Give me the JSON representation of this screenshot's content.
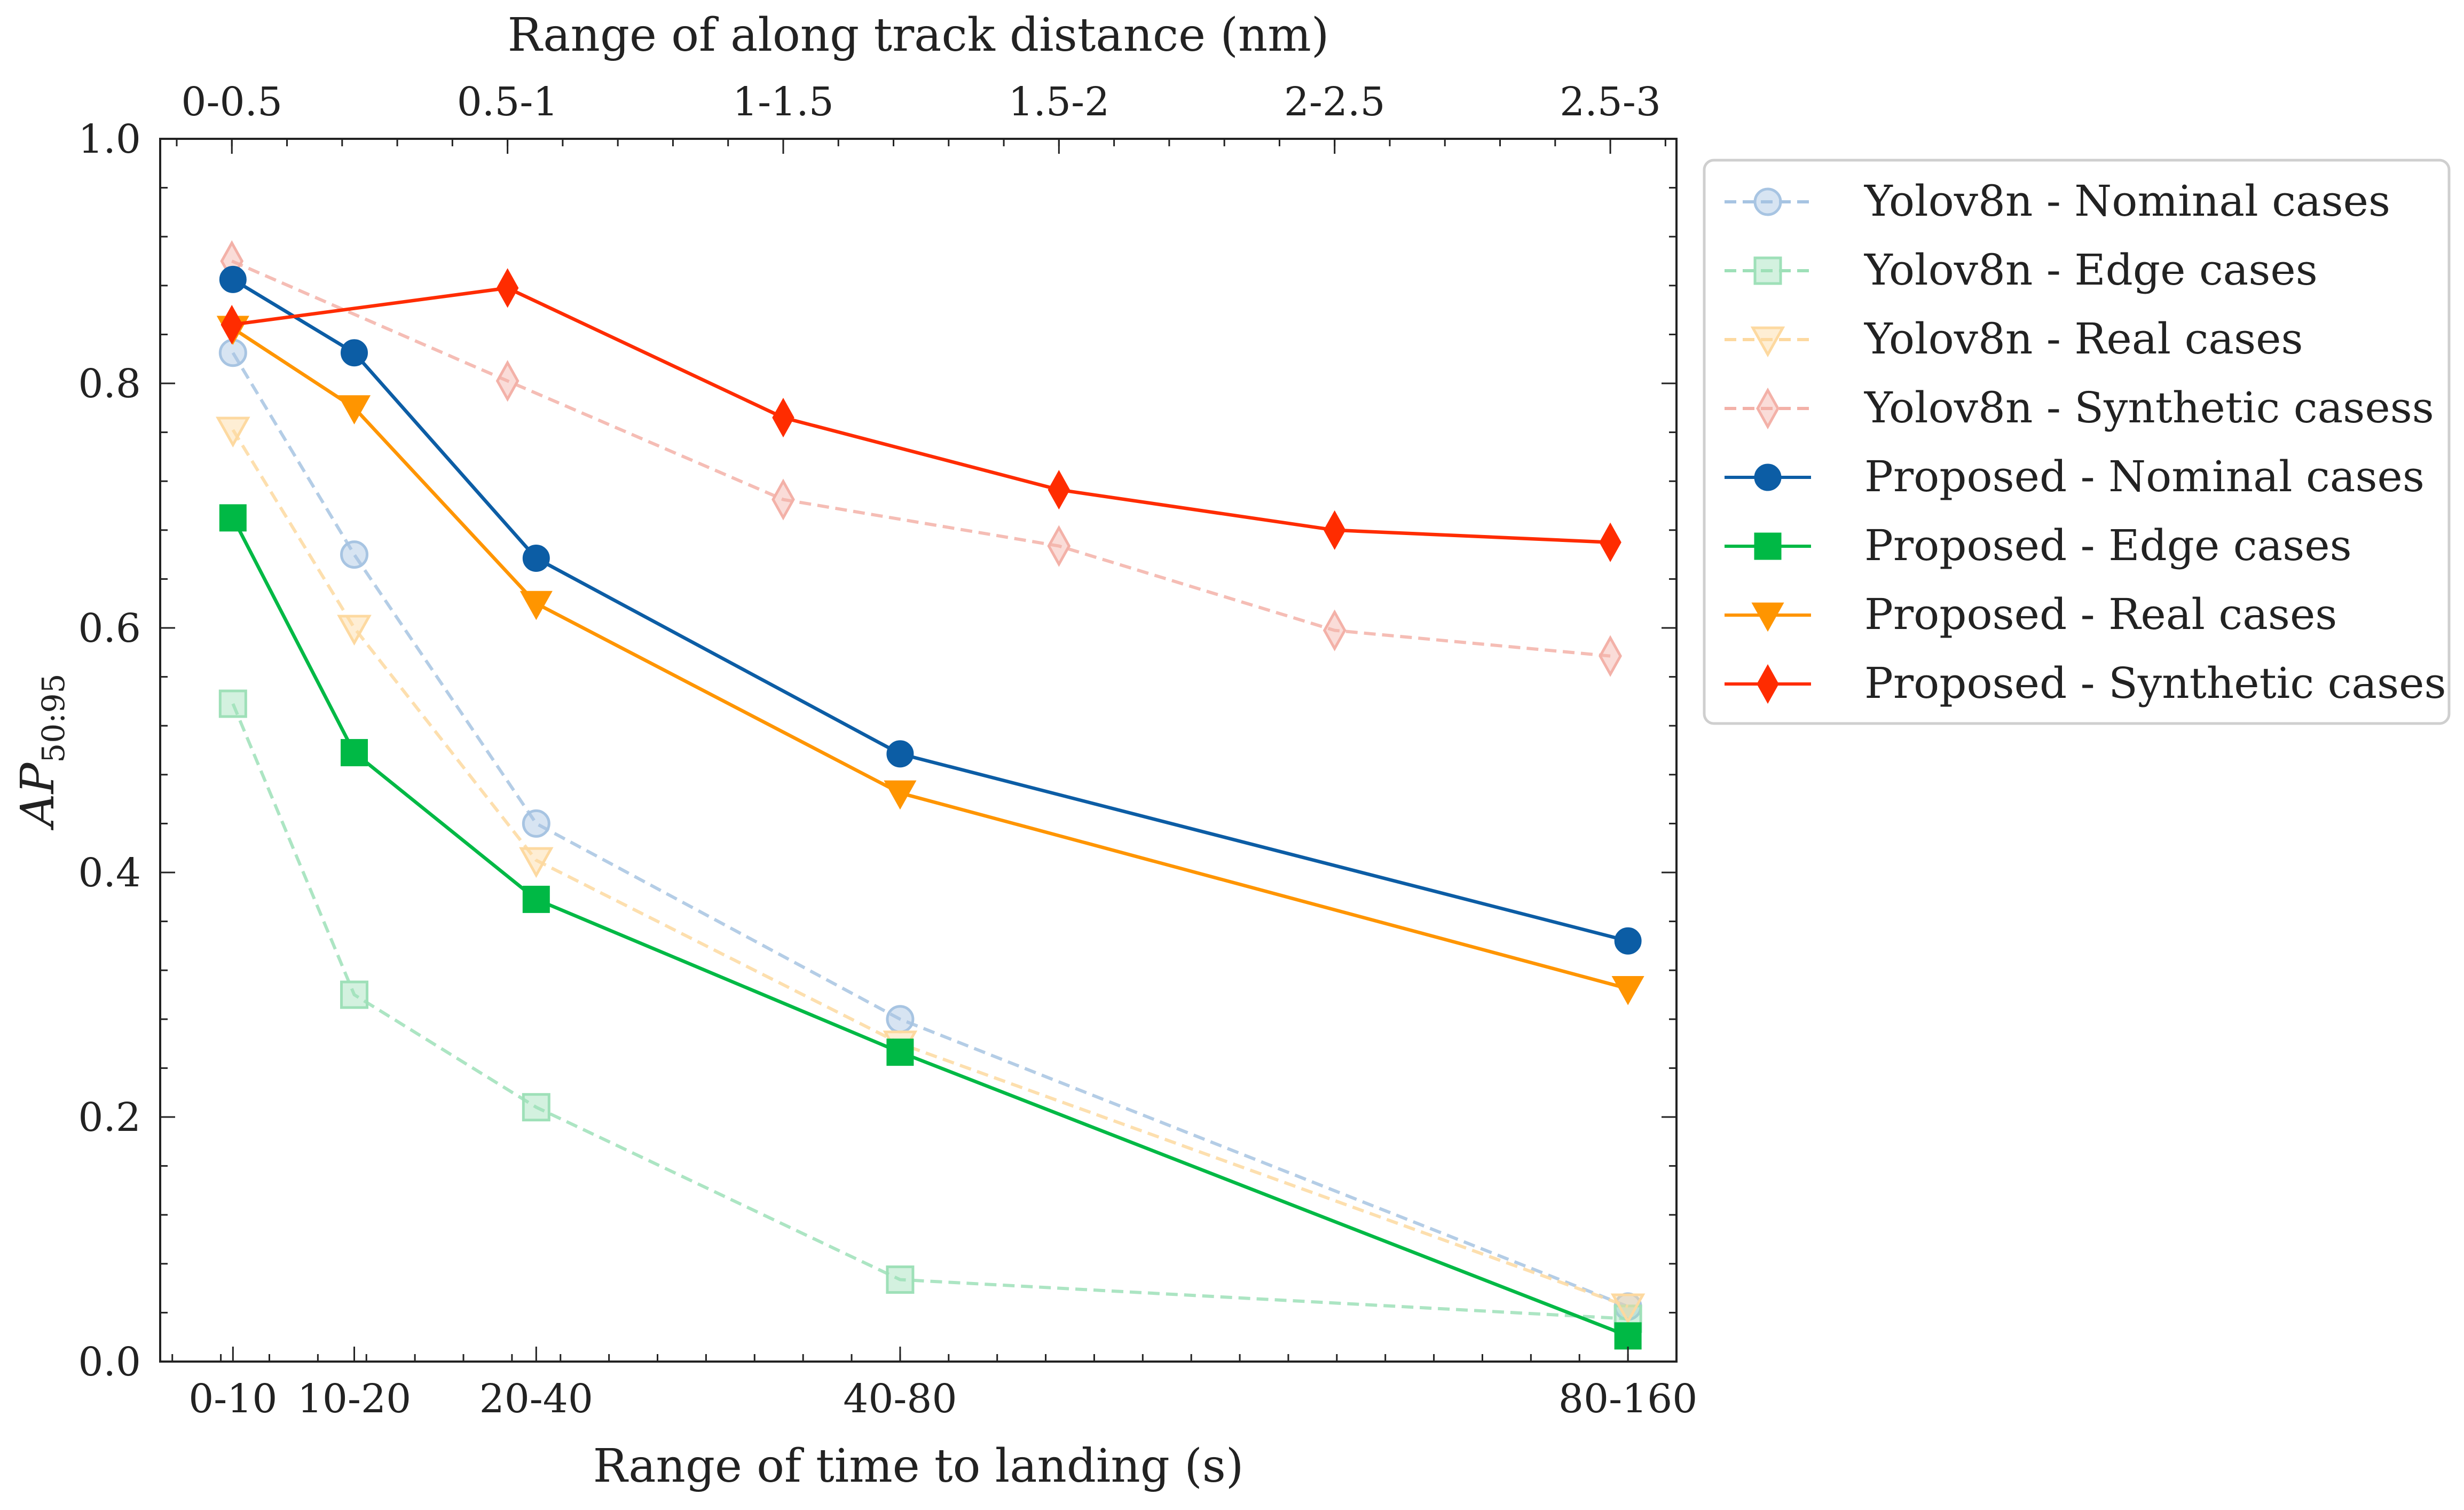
{
  "chart_data": {
    "type": "line",
    "top_axis": {
      "title": "Range of along track distance (nm)",
      "tick_labels": [
        "0-0.5",
        "0.5-1",
        "1-1.5",
        "1.5-2",
        "2-2.5",
        "2.5-3"
      ],
      "tick_positions": [
        0.25,
        0.75,
        1.25,
        1.75,
        2.25,
        2.75
      ],
      "range": [
        0.12,
        2.87
      ]
    },
    "x_axis": {
      "title": "Range of time to landing (s)",
      "tick_labels": [
        "0-10",
        "10-20",
        "20-40",
        "40-80",
        "80-160"
      ],
      "tick_positions": [
        5,
        15,
        30,
        60,
        120
      ],
      "range": [
        -1,
        124
      ]
    },
    "y_axis": {
      "title": "AP50:95",
      "label_main": "AP",
      "label_sub": "50:95",
      "range": [
        0.0,
        1.0
      ],
      "ticks": [
        "0.0",
        "0.2",
        "0.4",
        "0.6",
        "0.8",
        "1.0"
      ]
    },
    "legend_position": "outside-right",
    "grid": false,
    "series": [
      {
        "name": "Yolov8n - Nominal cases",
        "axis": "bottom",
        "style": "dashed",
        "marker": "circle",
        "color": "#a7c4e2",
        "x": [
          5,
          15,
          30,
          60,
          120
        ],
        "values": [
          0.825,
          0.66,
          0.44,
          0.28,
          0.045
        ]
      },
      {
        "name": "Yolov8n - Edge cases",
        "axis": "bottom",
        "style": "dashed",
        "marker": "square",
        "color": "#9ee0b8",
        "x": [
          5,
          15,
          30,
          60,
          120
        ],
        "values": [
          0.538,
          0.3,
          0.208,
          0.067,
          0.035
        ]
      },
      {
        "name": "Yolov8n - Real cases",
        "axis": "bottom",
        "style": "dashed",
        "marker": "triangle-down",
        "color": "#fdd9a0",
        "x": [
          5,
          15,
          30,
          60,
          120
        ],
        "values": [
          0.762,
          0.6,
          0.41,
          0.26,
          0.045
        ]
      },
      {
        "name": "Yolov8n - Synthetic casess",
        "axis": "top",
        "style": "dashed",
        "marker": "thin-diamond",
        "color": "#f3b1a8",
        "x": [
          0.25,
          0.75,
          1.25,
          1.75,
          2.25,
          2.75
        ],
        "values": [
          0.9,
          0.802,
          0.705,
          0.667,
          0.598,
          0.577
        ]
      },
      {
        "name": "Proposed - Nominal cases",
        "axis": "bottom",
        "style": "solid",
        "marker": "circle",
        "color": "#0c5da5",
        "x": [
          5,
          15,
          30,
          60,
          120
        ],
        "values": [
          0.885,
          0.825,
          0.657,
          0.497,
          0.344
        ]
      },
      {
        "name": "Proposed - Edge cases",
        "axis": "bottom",
        "style": "solid",
        "marker": "square",
        "color": "#00b945",
        "x": [
          5,
          15,
          30,
          60,
          120
        ],
        "values": [
          0.69,
          0.498,
          0.378,
          0.253,
          0.021
        ]
      },
      {
        "name": "Proposed - Real cases",
        "axis": "bottom",
        "style": "solid",
        "marker": "triangle-down",
        "color": "#ff9500",
        "x": [
          5,
          15,
          30,
          60,
          120
        ],
        "values": [
          0.845,
          0.78,
          0.62,
          0.465,
          0.305
        ]
      },
      {
        "name": "Proposed - Synthetic cases",
        "axis": "top",
        "style": "solid",
        "marker": "thin-diamond",
        "color": "#ff2c00",
        "x": [
          0.25,
          0.75,
          1.25,
          1.75,
          2.25,
          2.75
        ],
        "values": [
          0.848,
          0.878,
          0.772,
          0.713,
          0.68,
          0.67
        ]
      }
    ]
  }
}
